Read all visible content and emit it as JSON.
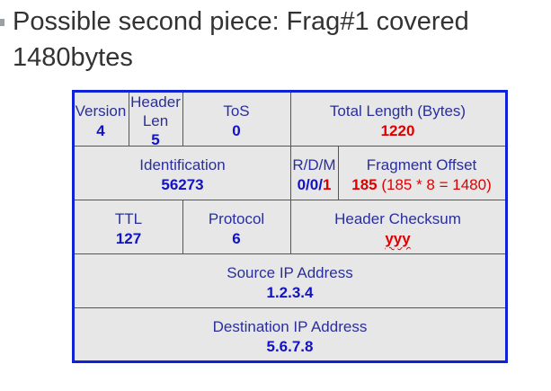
{
  "title": "Possible second piece: Frag#1 covered 1480bytes",
  "ip_header": {
    "version": {
      "label": "Version",
      "value": "4"
    },
    "header_len": {
      "label_line1": "Header",
      "label_line2": "Len",
      "value": "5"
    },
    "tos": {
      "label": "ToS",
      "value": "0"
    },
    "total_length": {
      "label": "Total Length (Bytes)",
      "value": "1220"
    },
    "identification": {
      "label": "Identification",
      "value": "56273"
    },
    "flags": {
      "label": "R/D/M",
      "value_prefix": "0/0/",
      "value_m": "1"
    },
    "fragment_offset": {
      "label": "Fragment Offset",
      "value": "185",
      "note": "(185 * 8 = 1480)"
    },
    "ttl": {
      "label": "TTL",
      "value": "127"
    },
    "protocol": {
      "label": "Protocol",
      "value": "6"
    },
    "header_checksum": {
      "label": "Header Checksum",
      "value": "yyy"
    },
    "source_ip": {
      "label": "Source IP Address",
      "value": "1.2.3.4"
    },
    "destination_ip": {
      "label": "Destination IP Address",
      "value": "5.6.7.8"
    }
  },
  "colors": {
    "border": "#0f22d6",
    "cell_bg": "#e7e7e7",
    "label_text": "#2a2f9a",
    "value_text": "#1212c8",
    "highlight": "#e00000"
  }
}
